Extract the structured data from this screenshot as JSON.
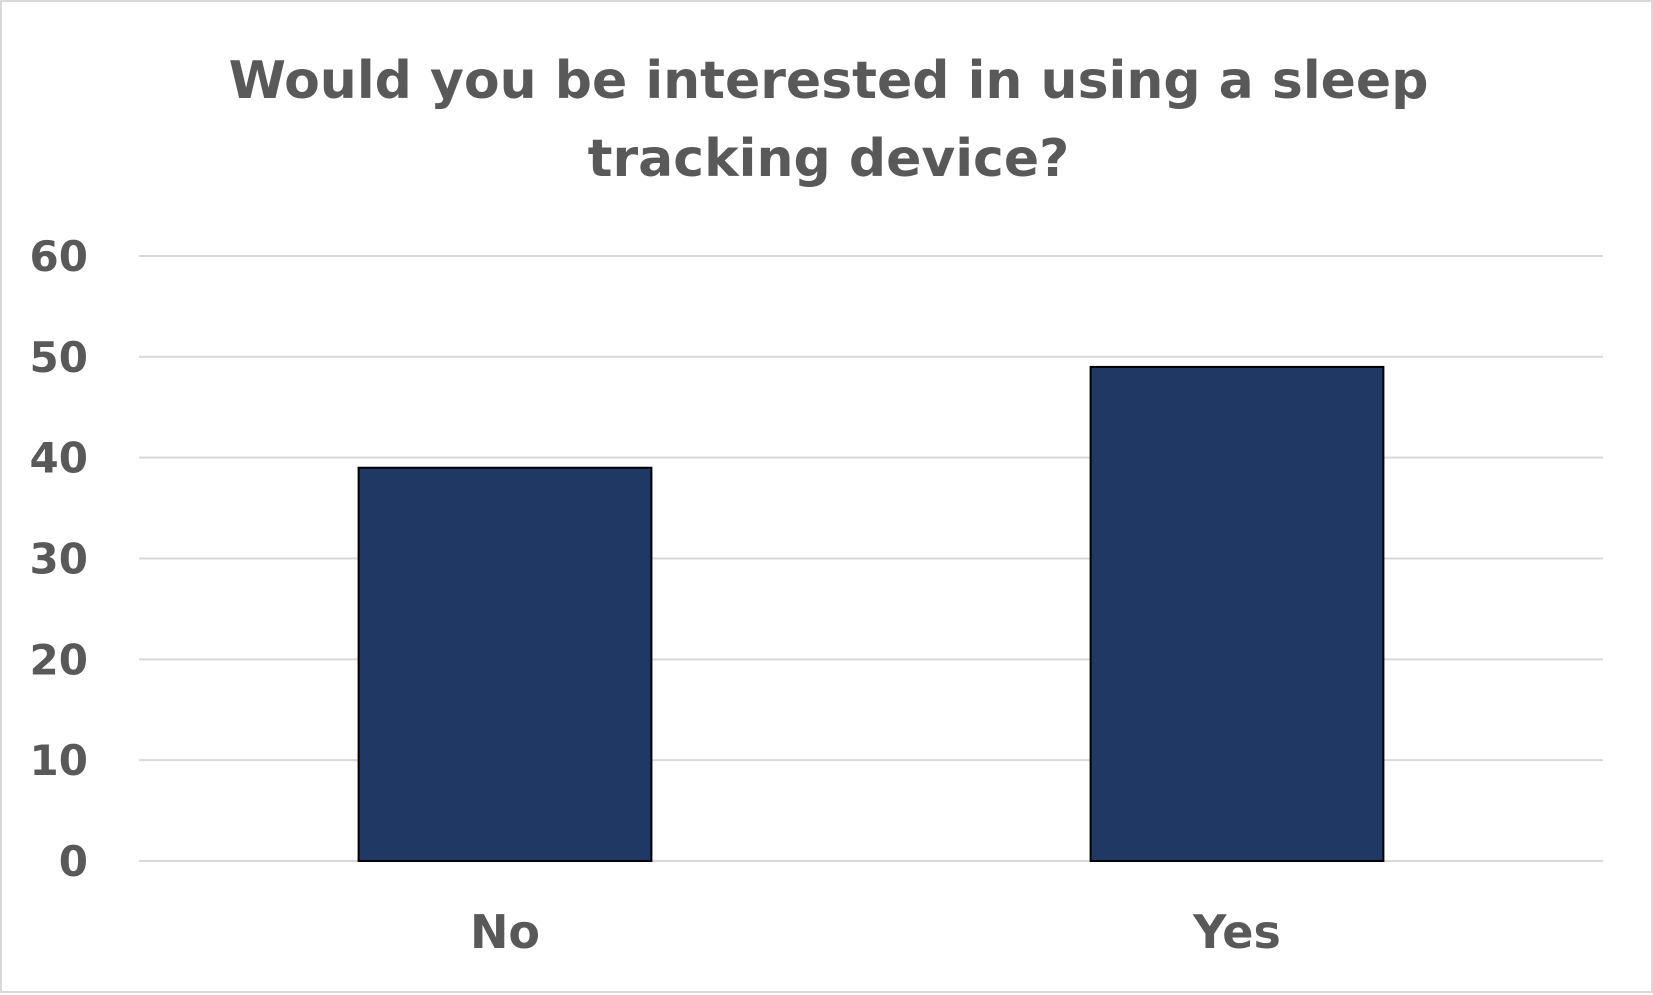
{
  "chart_data": {
    "type": "bar",
    "title": "Would you be interested in using a sleep tracking device?",
    "categories": [
      "No",
      "Yes"
    ],
    "values": [
      39,
      49
    ],
    "xlabel": "",
    "ylabel": "",
    "ylim": [
      0,
      60
    ],
    "yticks": [
      "0",
      "10",
      "20",
      "30",
      "40",
      "50",
      "60"
    ],
    "grid": true,
    "legend": "none",
    "colors": {
      "bar_fill": "#203864",
      "bar_stroke": "#000000",
      "grid": "#d9d9d9",
      "text": "#595959"
    }
  }
}
